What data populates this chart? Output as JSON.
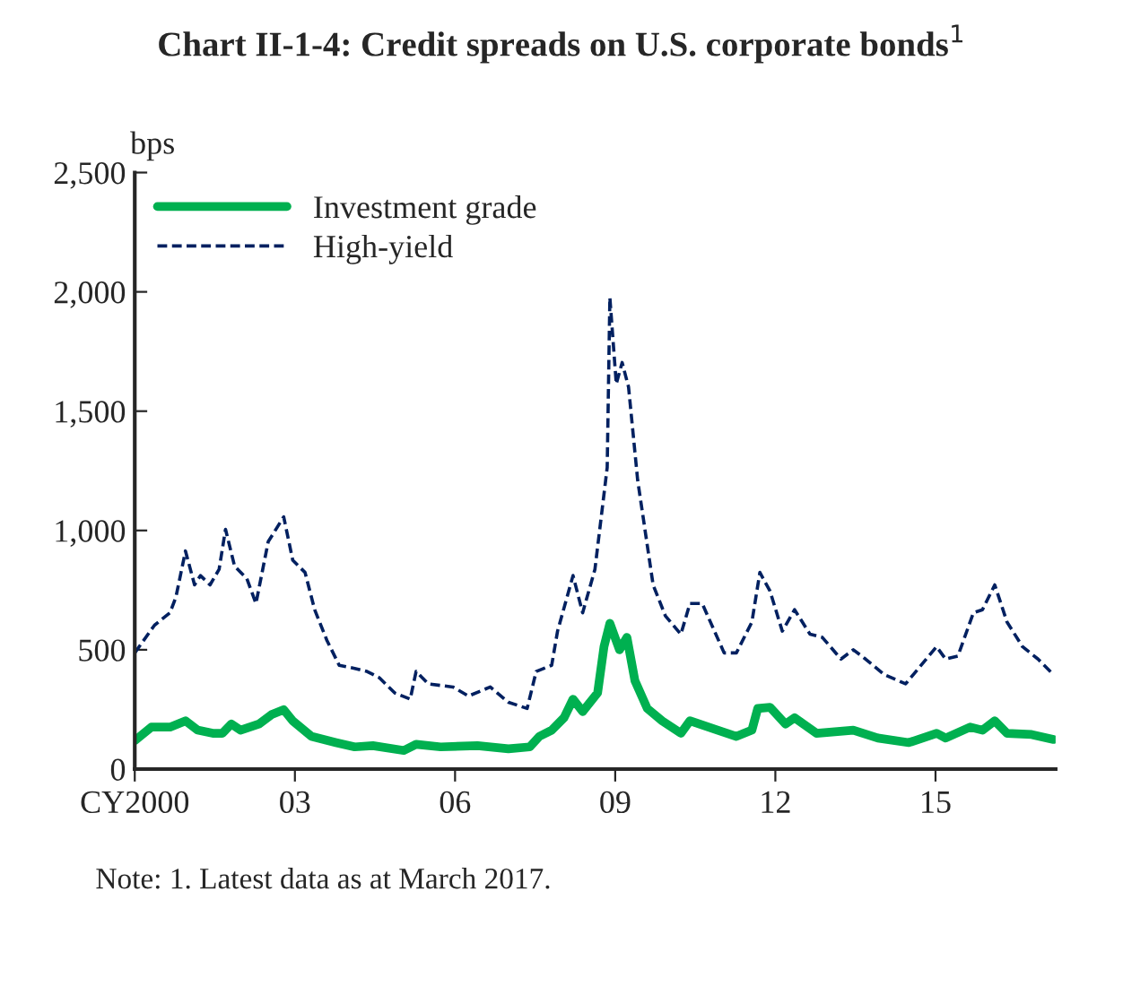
{
  "chart_data": {
    "type": "line",
    "title": "Chart II-1-4: Credit spreads on U.S. corporate bonds$^{1}$",
    "ylabel": "bps",
    "annotations": [
      "Note: 1. Latest data as at March 2017."
    ],
    "xlim": [
      2000,
      2017.25
    ],
    "ylim": [
      0,
      2500
    ],
    "xticks": [
      {
        "value": 2000,
        "label": "CY2000"
      },
      {
        "value": 2003,
        "label": "03"
      },
      {
        "value": 2006,
        "label": "06"
      },
      {
        "value": 2009,
        "label": "09"
      },
      {
        "value": 2012,
        "label": "12"
      },
      {
        "value": 2015,
        "label": "15"
      }
    ],
    "yticks": [
      {
        "value": 0,
        "label": "0"
      },
      {
        "value": 500,
        "label": "500"
      },
      {
        "value": 1000,
        "label": "1,000"
      },
      {
        "value": 1500,
        "label": "1,500"
      },
      {
        "value": 2000,
        "label": "2,000"
      },
      {
        "value": 2500,
        "label": "2,500"
      }
    ],
    "grid": false,
    "legend": "top left",
    "series": [
      {
        "name": "Investment grade",
        "color": "#00b050",
        "line_style": "solid",
        "x": [
          2000.0,
          2000.31,
          2000.66,
          2000.95,
          2001.18,
          2001.46,
          2001.64,
          2001.81,
          2001.98,
          2002.33,
          2002.56,
          2002.79,
          2002.96,
          2003.31,
          2003.77,
          2004.12,
          2004.46,
          2005.04,
          2005.27,
          2005.73,
          2006.42,
          2007.0,
          2007.4,
          2007.58,
          2007.81,
          2008.04,
          2008.21,
          2008.39,
          2008.67,
          2008.79,
          2008.9,
          2009.08,
          2009.22,
          2009.37,
          2009.6,
          2009.88,
          2010.23,
          2010.4,
          2010.92,
          2011.27,
          2011.56,
          2011.67,
          2011.9,
          2012.19,
          2012.36,
          2012.77,
          2013.46,
          2013.92,
          2014.5,
          2015.02,
          2015.19,
          2015.65,
          2015.88,
          2016.11,
          2016.34,
          2016.8,
          2017.21
        ],
        "values": [
          119,
          176,
          176,
          202,
          163,
          150,
          150,
          189,
          163,
          189,
          228,
          249,
          202,
          137,
          111,
          93,
          98,
          78,
          104,
          93,
          98,
          85,
          93,
          137,
          163,
          215,
          293,
          241,
          319,
          513,
          611,
          500,
          552,
          370,
          254,
          202,
          150,
          202,
          163,
          137,
          163,
          254,
          259,
          189,
          215,
          150,
          163,
          130,
          111,
          150,
          130,
          176,
          163,
          202,
          150,
          145,
          124
        ]
      },
      {
        "name": "High-yield",
        "color": "#002060",
        "line_style": "dashed",
        "x": [
          2000.0,
          2000.37,
          2000.66,
          2000.77,
          2000.95,
          2001.12,
          2001.23,
          2001.41,
          2001.58,
          2001.7,
          2001.87,
          2002.1,
          2002.27,
          2002.5,
          2002.79,
          2002.96,
          2003.19,
          2003.37,
          2003.6,
          2003.83,
          2004.12,
          2004.35,
          2004.58,
          2004.87,
          2005.16,
          2005.27,
          2005.5,
          2005.96,
          2006.25,
          2006.66,
          2007.0,
          2007.35,
          2007.52,
          2007.81,
          2007.92,
          2008.21,
          2008.39,
          2008.62,
          2008.85,
          2008.9,
          2009.02,
          2009.13,
          2009.25,
          2009.42,
          2009.71,
          2009.94,
          2010.23,
          2010.4,
          2010.63,
          2011.04,
          2011.27,
          2011.56,
          2011.71,
          2011.9,
          2012.13,
          2012.36,
          2012.65,
          2012.88,
          2013.23,
          2013.46,
          2013.69,
          2014.04,
          2014.44,
          2014.73,
          2015.02,
          2015.19,
          2015.42,
          2015.71,
          2015.88,
          2016.11,
          2016.34,
          2016.63,
          2016.92,
          2017.21
        ],
        "values": [
          487,
          603,
          655,
          720,
          914,
          772,
          811,
          772,
          837,
          1005,
          850,
          798,
          694,
          953,
          1057,
          875,
          824,
          668,
          539,
          435,
          422,
          409,
          383,
          319,
          293,
          409,
          357,
          344,
          306,
          344,
          280,
          254,
          409,
          435,
          578,
          811,
          655,
          837,
          1264,
          1976,
          1614,
          1704,
          1601,
          1212,
          772,
          642,
          565,
          694,
          694,
          487,
          487,
          616,
          824,
          746,
          578,
          668,
          565,
          552,
          461,
          500,
          461,
          396,
          357,
          435,
          513,
          461,
          474,
          655,
          668,
          772,
          616,
          513,
          461,
          396
        ]
      }
    ]
  }
}
